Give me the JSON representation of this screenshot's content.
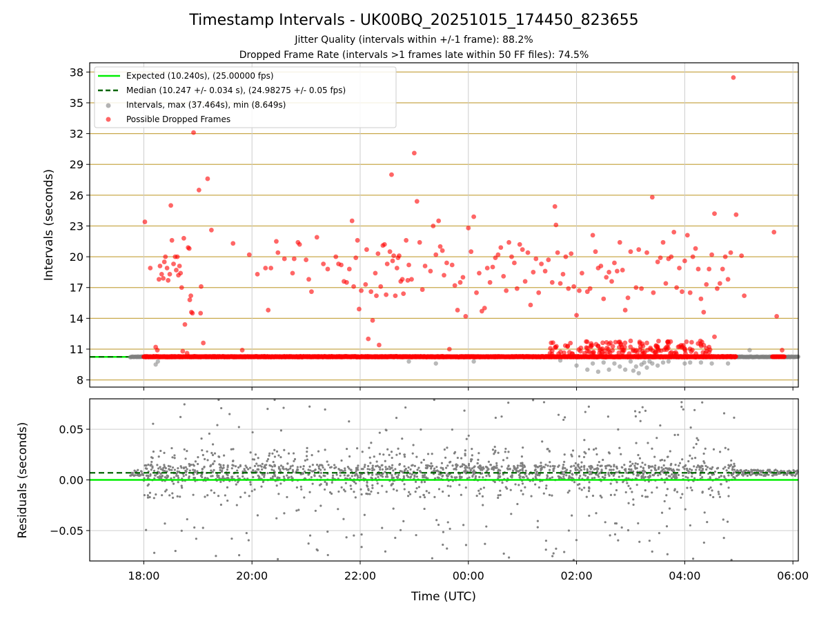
{
  "chart_data": [
    {
      "type": "scatter",
      "title": "Timestamp Intervals - UK00BQ_20251015_174450_823655",
      "subtitle_lines": [
        "Jitter Quality (intervals within +/-1 frame): 88.2%",
        "Dropped Frame Rate (intervals >1 frames late within 50 FF files): 74.5%"
      ],
      "ylabel": "Intervals (seconds)",
      "ylim": [
        7.3,
        38.9
      ],
      "yticks": [
        8,
        11,
        14,
        17,
        20,
        23,
        26,
        29,
        32,
        35,
        38
      ],
      "xlim_hours": [
        17.0,
        30.1
      ],
      "x_unit": "hours since 2025-10-15 00:00 UTC",
      "grid": true,
      "legend_position": "upper-left",
      "legend": [
        "Expected (10.240s), (25.00000 fps)",
        "Median (10.247 +/- 0.034 s), (24.98275 +/- 0.05 fps)",
        "Intervals, max (37.464s), min (8.649s)",
        "Possible Dropped Frames"
      ],
      "expected_interval": 10.24,
      "median_interval": 10.247,
      "interval_max": 37.464,
      "interval_min": 8.649,
      "series_colors": {
        "expected": "#00ee00",
        "median": "#006400",
        "intervals": "#808080",
        "dropped": "#ff0000",
        "goldgrid": "#c8a84a"
      },
      "dropped_points": [
        [
          18.02,
          23.4
        ],
        [
          18.12,
          18.9
        ],
        [
          18.22,
          11.2
        ],
        [
          18.25,
          10.9
        ],
        [
          18.28,
          17.8
        ],
        [
          18.3,
          19.1
        ],
        [
          18.33,
          18.3
        ],
        [
          18.36,
          17.9
        ],
        [
          18.38,
          19.5
        ],
        [
          18.4,
          20.0
        ],
        [
          18.43,
          18.9
        ],
        [
          18.45,
          17.7
        ],
        [
          18.48,
          18.3
        ],
        [
          18.5,
          25.0
        ],
        [
          18.52,
          21.6
        ],
        [
          18.55,
          19.3
        ],
        [
          18.58,
          20.0
        ],
        [
          18.6,
          18.7
        ],
        [
          18.62,
          20.0
        ],
        [
          18.64,
          18.2
        ],
        [
          18.66,
          19.1
        ],
        [
          18.68,
          18.4
        ],
        [
          18.7,
          17.0
        ],
        [
          18.72,
          10.8
        ],
        [
          18.74,
          21.8
        ],
        [
          18.76,
          13.4
        ],
        [
          18.8,
          10.6
        ],
        [
          18.82,
          20.9
        ],
        [
          18.84,
          20.8
        ],
        [
          18.85,
          15.8
        ],
        [
          18.87,
          16.2
        ],
        [
          18.88,
          14.6
        ],
        [
          18.9,
          14.5
        ],
        [
          18.92,
          32.1
        ],
        [
          19.02,
          26.5
        ],
        [
          19.05,
          14.5
        ],
        [
          19.06,
          17.1
        ],
        [
          19.1,
          11.6
        ],
        [
          19.18,
          27.6
        ],
        [
          19.25,
          22.6
        ],
        [
          19.65,
          21.3
        ],
        [
          19.82,
          10.9
        ],
        [
          19.95,
          20.2
        ],
        [
          20.1,
          18.3
        ],
        [
          20.25,
          18.9
        ],
        [
          20.3,
          14.8
        ],
        [
          20.35,
          18.9
        ],
        [
          20.45,
          21.5
        ],
        [
          20.48,
          20.4
        ],
        [
          20.6,
          19.8
        ],
        [
          20.75,
          18.4
        ],
        [
          20.78,
          19.8
        ],
        [
          20.85,
          21.4
        ],
        [
          20.88,
          21.2
        ],
        [
          21.0,
          19.7
        ],
        [
          21.05,
          17.8
        ],
        [
          21.1,
          16.6
        ],
        [
          21.2,
          21.9
        ],
        [
          21.32,
          19.3
        ],
        [
          21.4,
          18.8
        ],
        [
          21.55,
          20.0
        ],
        [
          21.6,
          19.3
        ],
        [
          21.65,
          19.2
        ],
        [
          21.7,
          17.6
        ],
        [
          21.75,
          17.5
        ],
        [
          21.8,
          18.8
        ],
        [
          21.85,
          23.5
        ],
        [
          21.88,
          17.1
        ],
        [
          21.92,
          19.9
        ],
        [
          21.95,
          21.6
        ],
        [
          21.98,
          14.9
        ],
        [
          22.02,
          16.7
        ],
        [
          22.1,
          17.3
        ],
        [
          22.12,
          20.7
        ],
        [
          22.15,
          12.0
        ],
        [
          22.2,
          16.6
        ],
        [
          22.23,
          13.8
        ],
        [
          22.28,
          18.4
        ],
        [
          22.3,
          16.2
        ],
        [
          22.33,
          20.3
        ],
        [
          22.35,
          11.4
        ],
        [
          22.38,
          17.1
        ],
        [
          22.42,
          21.1
        ],
        [
          22.45,
          21.2
        ],
        [
          22.48,
          16.3
        ],
        [
          22.5,
          19.3
        ],
        [
          22.55,
          20.5
        ],
        [
          22.58,
          28.0
        ],
        [
          22.6,
          19.6
        ],
        [
          22.62,
          20.1
        ],
        [
          22.65,
          16.2
        ],
        [
          22.68,
          18.9
        ],
        [
          22.7,
          19.9
        ],
        [
          22.72,
          20.1
        ],
        [
          22.75,
          17.6
        ],
        [
          22.78,
          17.8
        ],
        [
          22.8,
          16.4
        ],
        [
          22.85,
          21.6
        ],
        [
          22.88,
          17.7
        ],
        [
          22.9,
          19.2
        ],
        [
          22.95,
          17.8
        ],
        [
          23.0,
          30.1
        ],
        [
          23.05,
          25.4
        ],
        [
          23.1,
          21.4
        ],
        [
          23.15,
          16.8
        ],
        [
          23.2,
          19.1
        ],
        [
          23.3,
          18.6
        ],
        [
          23.35,
          23.0
        ],
        [
          23.4,
          20.2
        ],
        [
          23.45,
          23.5
        ],
        [
          23.48,
          21.0
        ],
        [
          23.52,
          20.6
        ],
        [
          23.55,
          18.2
        ],
        [
          23.6,
          19.4
        ],
        [
          23.65,
          11.0
        ],
        [
          23.7,
          19.2
        ],
        [
          23.75,
          17.2
        ],
        [
          23.8,
          14.8
        ],
        [
          23.85,
          17.5
        ],
        [
          23.9,
          18.0
        ],
        [
          23.95,
          14.2
        ],
        [
          24.0,
          22.8
        ],
        [
          24.05,
          20.5
        ],
        [
          24.1,
          23.9
        ],
        [
          24.15,
          16.5
        ],
        [
          24.2,
          18.4
        ],
        [
          24.25,
          14.7
        ],
        [
          24.3,
          15.0
        ],
        [
          24.35,
          18.9
        ],
        [
          24.4,
          17.5
        ],
        [
          24.45,
          19.0
        ],
        [
          24.5,
          19.9
        ],
        [
          24.55,
          20.2
        ],
        [
          24.6,
          20.9
        ],
        [
          24.65,
          18.1
        ],
        [
          24.7,
          16.7
        ],
        [
          24.75,
          21.4
        ],
        [
          24.8,
          20.0
        ],
        [
          24.85,
          19.4
        ],
        [
          24.9,
          16.9
        ],
        [
          24.95,
          21.2
        ],
        [
          25.0,
          20.7
        ],
        [
          25.05,
          17.6
        ],
        [
          25.1,
          20.4
        ],
        [
          25.15,
          15.3
        ],
        [
          25.2,
          18.5
        ],
        [
          25.25,
          19.8
        ],
        [
          25.3,
          16.5
        ],
        [
          25.35,
          19.3
        ],
        [
          25.42,
          18.6
        ],
        [
          25.48,
          19.7
        ],
        [
          25.55,
          17.5
        ],
        [
          25.6,
          24.9
        ],
        [
          25.62,
          23.1
        ],
        [
          25.65,
          20.4
        ],
        [
          25.7,
          17.4
        ],
        [
          25.75,
          18.3
        ],
        [
          25.8,
          20.0
        ],
        [
          25.85,
          16.9
        ],
        [
          25.9,
          20.3
        ],
        [
          25.95,
          17.1
        ],
        [
          26.0,
          14.3
        ],
        [
          26.05,
          16.7
        ],
        [
          26.1,
          18.4
        ],
        [
          26.15,
          10.6
        ],
        [
          26.2,
          16.6
        ],
        [
          26.25,
          16.9
        ],
        [
          26.3,
          22.1
        ],
        [
          26.35,
          20.5
        ],
        [
          26.4,
          18.9
        ],
        [
          26.45,
          19.1
        ],
        [
          26.5,
          15.9
        ],
        [
          26.55,
          18.0
        ],
        [
          26.6,
          18.5
        ],
        [
          26.65,
          17.6
        ],
        [
          26.7,
          19.4
        ],
        [
          26.75,
          18.6
        ],
        [
          26.8,
          21.4
        ],
        [
          26.85,
          18.7
        ],
        [
          26.9,
          14.8
        ],
        [
          26.95,
          16.0
        ],
        [
          27.0,
          20.5
        ],
        [
          27.1,
          17.0
        ],
        [
          27.15,
          20.7
        ],
        [
          27.2,
          16.9
        ],
        [
          27.3,
          20.4
        ],
        [
          27.4,
          25.8
        ],
        [
          27.42,
          16.5
        ],
        [
          27.5,
          19.5
        ],
        [
          27.55,
          19.9
        ],
        [
          27.6,
          21.4
        ],
        [
          27.65,
          17.4
        ],
        [
          27.7,
          19.8
        ],
        [
          27.75,
          20.0
        ],
        [
          27.8,
          22.4
        ],
        [
          27.85,
          17.0
        ],
        [
          27.9,
          18.9
        ],
        [
          27.95,
          16.6
        ],
        [
          28.0,
          19.6
        ],
        [
          28.05,
          22.1
        ],
        [
          28.1,
          16.5
        ],
        [
          28.15,
          20.0
        ],
        [
          28.2,
          20.8
        ],
        [
          28.25,
          18.8
        ],
        [
          28.3,
          15.9
        ],
        [
          28.35,
          14.6
        ],
        [
          28.4,
          17.3
        ],
        [
          28.45,
          18.8
        ],
        [
          28.5,
          20.2
        ],
        [
          28.55,
          24.2
        ],
        [
          28.6,
          16.9
        ],
        [
          28.65,
          17.4
        ],
        [
          28.7,
          18.8
        ],
        [
          28.75,
          20.0
        ],
        [
          28.8,
          17.8
        ],
        [
          28.85,
          20.4
        ],
        [
          28.9,
          37.464
        ],
        [
          28.95,
          24.1
        ],
        [
          29.05,
          20.1
        ],
        [
          29.1,
          16.2
        ],
        [
          28.55,
          12.2
        ],
        [
          28.45,
          11.2
        ],
        [
          28.0,
          11.0
        ],
        [
          27.5,
          11.2
        ],
        [
          27.3,
          11.6
        ],
        [
          27.0,
          11.8
        ],
        [
          26.8,
          11.7
        ],
        [
          26.6,
          11.5
        ],
        [
          26.4,
          11.3
        ],
        [
          26.2,
          11.1
        ],
        [
          29.65,
          22.4
        ],
        [
          29.7,
          14.2
        ],
        [
          29.8,
          10.9
        ]
      ]
    },
    {
      "type": "scatter",
      "xlabel": "Time (UTC)",
      "ylabel": "Residuals (seconds)",
      "ylim": [
        -0.08,
        0.08
      ],
      "yticks": [
        -0.05,
        0.0,
        0.05
      ],
      "ytick_labels": [
        "−0.05",
        "0.00",
        "0.05"
      ],
      "xlim_hours": [
        17.0,
        30.1
      ],
      "xticks_hours": [
        18,
        20,
        22,
        24,
        26,
        28,
        30
      ],
      "xtick_labels": [
        "18:00",
        "20:00",
        "22:00",
        "00:00",
        "02:00",
        "04:00",
        "06:00"
      ],
      "expected_residual": 0.0,
      "median_residual": 0.007,
      "active_window_hours": [
        18.0,
        28.95
      ],
      "steady_segments_hours": [
        [
          17.75,
          18.0
        ],
        [
          28.95,
          30.1
        ]
      ],
      "grid": true
    }
  ]
}
